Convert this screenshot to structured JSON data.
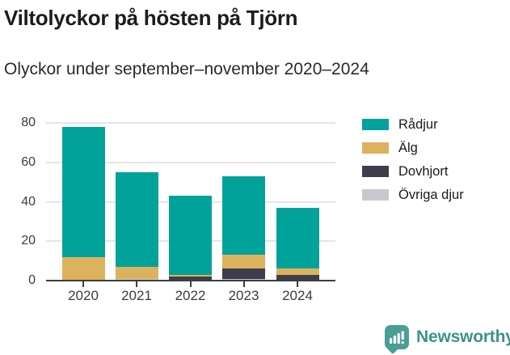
{
  "header": {
    "title": "Viltolyckor på hösten på Tjörn",
    "subtitle": "Olyckor under september–november 2020–2024"
  },
  "chart_data": {
    "type": "bar",
    "stacked": true,
    "title": "Viltolyckor på hösten på Tjörn",
    "subtitle": "Olyckor under september–november 2020–2024",
    "categories": [
      "2020",
      "2021",
      "2022",
      "2023",
      "2024"
    ],
    "series": [
      {
        "name": "Rådjur",
        "color": "#00a29a",
        "values": [
          66,
          48,
          40,
          40,
          31
        ]
      },
      {
        "name": "Älg",
        "color": "#ddb25d",
        "values": [
          12,
          6,
          1,
          7,
          3
        ]
      },
      {
        "name": "Dovhjort",
        "color": "#3e3d4b",
        "values": [
          0,
          0,
          2,
          5,
          3
        ]
      },
      {
        "name": "Övriga djur",
        "color": "#c8c8ce",
        "values": [
          0,
          1,
          0,
          1,
          0
        ]
      }
    ],
    "stack_order_bottom_to_top": [
      "Övriga djur",
      "Dovhjort",
      "Älg",
      "Rådjur"
    ],
    "totals": [
      78,
      55,
      43,
      53,
      37
    ],
    "xlabel": "",
    "ylabel": "",
    "ylim": [
      0,
      80
    ],
    "yticks": [
      0,
      20,
      40,
      60,
      80
    ],
    "grid": "horizontal",
    "legend_position": "top-right"
  },
  "footer": {
    "brand": "Newsworthy",
    "brand_color": "#3e918b",
    "badge_color": "#4a9e96"
  }
}
